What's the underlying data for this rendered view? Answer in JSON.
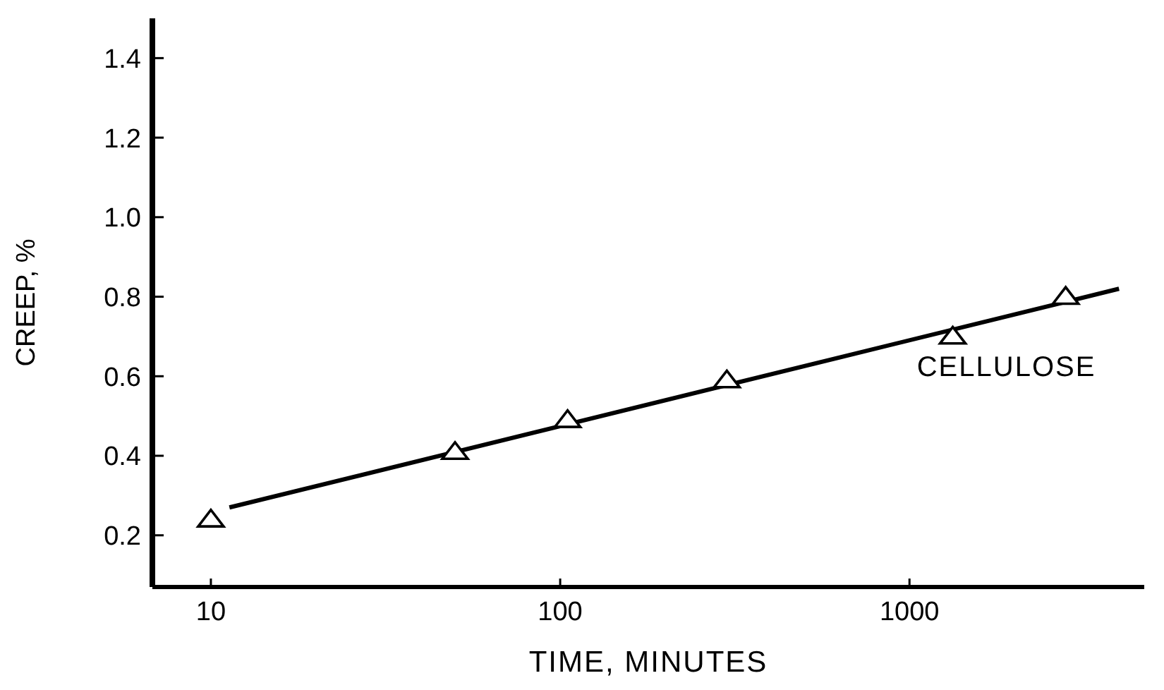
{
  "chart_data": {
    "type": "scatter",
    "xlabel": "TIME, MINUTES",
    "ylabel": "CREEP, %",
    "log": "x",
    "marker": "triangle",
    "grid": false,
    "legend": false,
    "xlim": [
      6.8,
      4700
    ],
    "xticks": [
      10,
      100,
      1000
    ],
    "ylim": [
      0.07,
      1.5
    ],
    "yticks": [
      0.2,
      0.4,
      0.6,
      0.8,
      {
        "value": 1.0,
        "label": "1.0"
      },
      1.2,
      1.4
    ],
    "series": [
      {
        "name": "CELLULOSE",
        "color": "#000000",
        "x": [
          10,
          50,
          105,
          300,
          1330,
          2800
        ],
        "values": [
          0.24,
          0.41,
          0.49,
          0.59,
          0.7,
          0.8
        ]
      },
      {
        "type": "line",
        "color": "#000000",
        "marker": "none",
        "line_style": "solid",
        "x": [
          11.3,
          3980
        ],
        "values": [
          0.27,
          0.82
        ]
      }
    ]
  }
}
